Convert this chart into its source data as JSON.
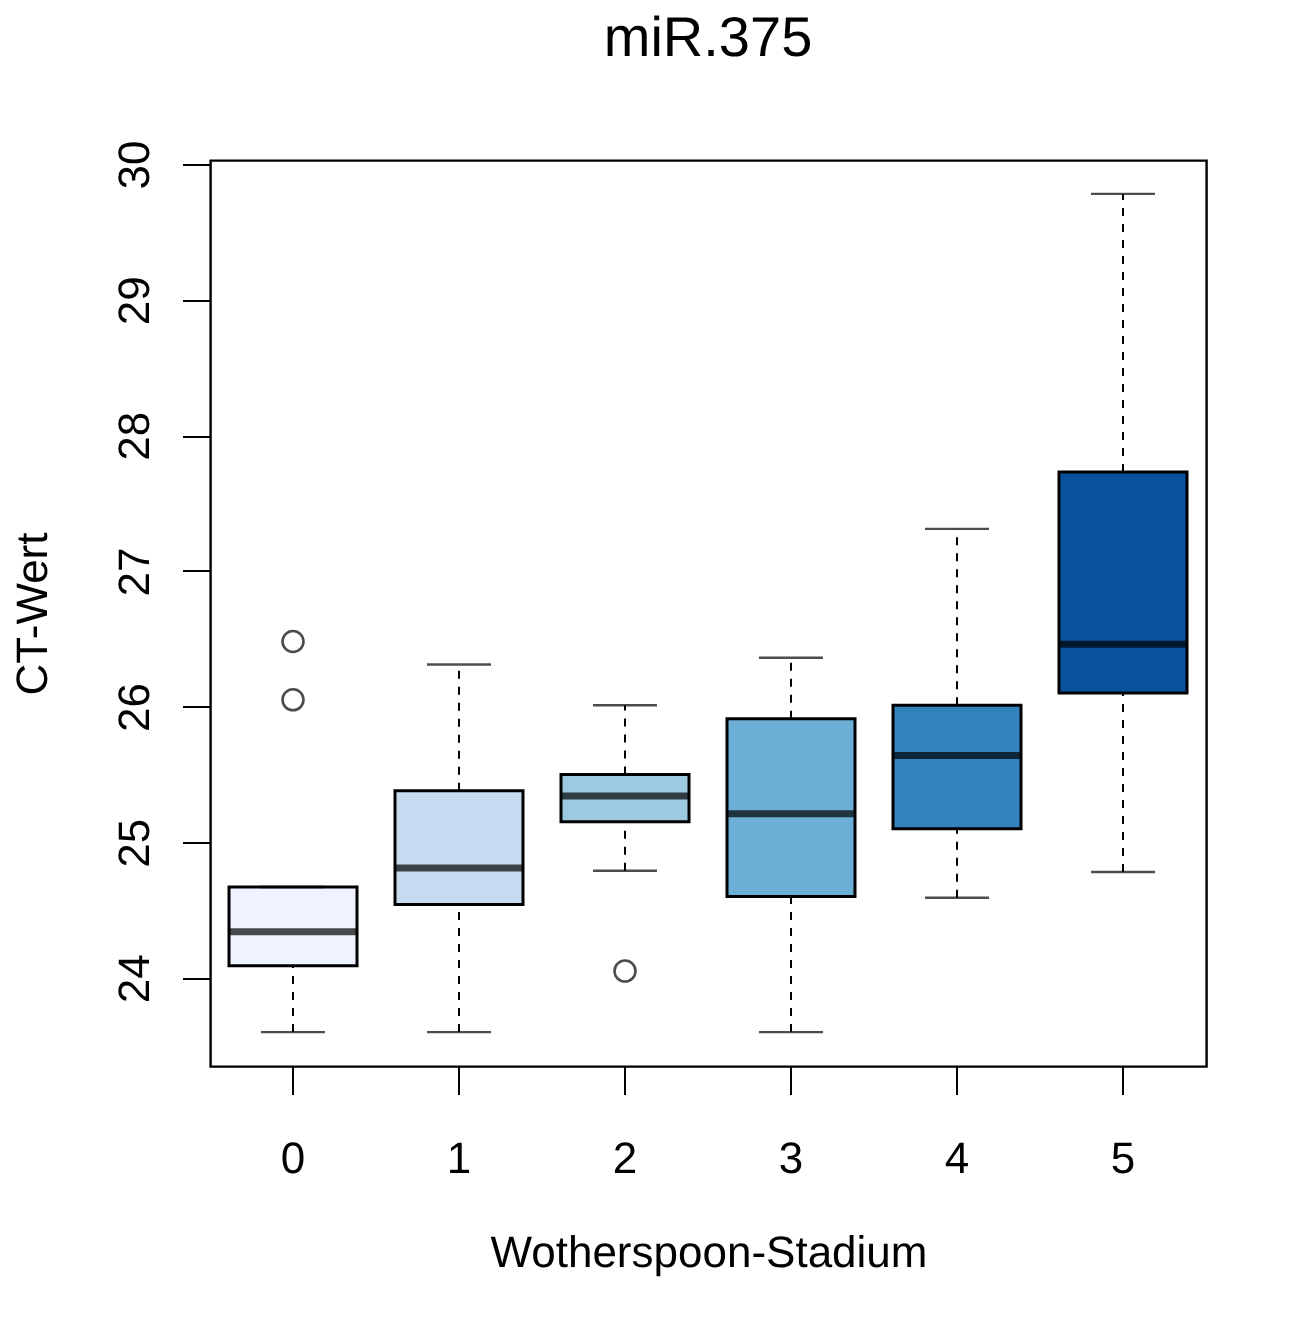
{
  "chart_data": {
    "type": "box",
    "title": "miR.375",
    "xlabel": "Wotherspoon-Stadium",
    "ylabel": "CT-Wert",
    "categories": [
      "0",
      "1",
      "2",
      "3",
      "4",
      "5"
    ],
    "colors": [
      "#eff3ff",
      "#c6dbef",
      "#9ecae1",
      "#6baed6",
      "#3182bd",
      "#08519c"
    ],
    "boxes": [
      {
        "low": 23.6,
        "q1": 24.09,
        "median": 24.34,
        "q3": 24.67,
        "high": 24.67,
        "outliers": [
          26.48,
          26.05
        ]
      },
      {
        "low": 23.6,
        "q1": 24.54,
        "median": 24.81,
        "q3": 25.38,
        "high": 26.31
      },
      {
        "low": 24.79,
        "q1": 25.15,
        "median": 25.34,
        "q3": 25.5,
        "high": 26.01,
        "outliers": [
          24.05
        ]
      },
      {
        "low": 23.6,
        "q1": 24.6,
        "median": 25.21,
        "q3": 25.91,
        "high": 26.36
      },
      {
        "low": 24.59,
        "q1": 25.1,
        "median": 25.64,
        "q3": 26.01,
        "high": 27.31
      },
      {
        "low": 24.78,
        "q1": 26.1,
        "median": 26.46,
        "q3": 27.73,
        "high": 29.78
      }
    ],
    "ylim": [
      23.35,
      30.03
    ],
    "yticks": [
      24,
      25,
      26,
      27,
      28,
      29,
      30
    ]
  }
}
